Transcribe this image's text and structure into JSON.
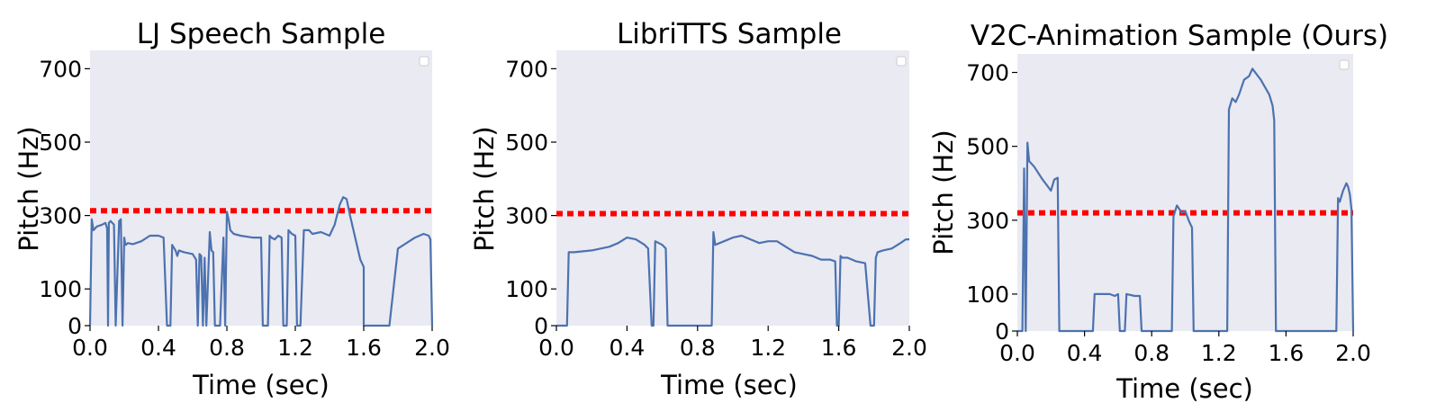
{
  "chart_data": [
    {
      "type": "line",
      "title": "LJ Speech Sample",
      "xlabel": "Time (sec)",
      "ylabel": "Pitch (Hz)",
      "xlim": [
        0,
        2.0
      ],
      "ylim": [
        0,
        750
      ],
      "xticks": [
        0.0,
        0.4,
        0.8,
        1.2,
        1.6,
        2.0
      ],
      "xtick_labels": [
        "0.0",
        "0.4",
        "0.8",
        "1.2",
        "1.6",
        "2.0"
      ],
      "yticks": [
        0,
        100,
        300,
        500,
        700
      ],
      "ytick_labels": [
        "0",
        "100",
        "300",
        "500",
        "700"
      ],
      "grid": false,
      "legend": "top-right",
      "mean_pitch": 313,
      "series": [
        {
          "x": [
            0.0,
            0.01,
            0.02,
            0.04,
            0.07,
            0.09,
            0.1,
            0.105,
            0.11,
            0.12,
            0.13,
            0.14,
            0.15,
            0.17,
            0.18,
            0.19,
            0.2,
            0.205,
            0.21,
            0.22,
            0.25,
            0.3,
            0.35,
            0.4,
            0.43,
            0.45,
            0.47,
            0.48,
            0.5,
            0.51,
            0.52,
            0.55,
            0.6,
            0.62,
            0.63,
            0.64,
            0.65,
            0.66,
            0.67,
            0.68,
            0.7,
            0.71,
            0.72,
            0.73,
            0.74,
            0.75,
            0.76,
            0.78,
            0.79,
            0.8,
            0.81,
            0.82,
            0.84,
            0.88,
            0.95,
            1.0,
            1.01,
            1.02,
            1.03,
            1.04,
            1.05,
            1.06,
            1.08,
            1.1,
            1.12,
            1.13,
            1.14,
            1.15,
            1.16,
            1.18,
            1.2,
            1.21,
            1.22,
            1.23,
            1.25,
            1.28,
            1.3,
            1.35,
            1.4,
            1.43,
            1.46,
            1.48,
            1.5,
            1.52,
            1.55,
            1.58,
            1.6,
            1.6,
            1.65,
            1.7,
            1.75,
            1.8,
            1.85,
            1.9,
            1.95,
            1.98,
            1.99,
            2.0
          ],
          "y": [
            0,
            290,
            260,
            270,
            275,
            280,
            265,
            0,
            280,
            285,
            280,
            275,
            0,
            285,
            290,
            0,
            240,
            225,
            220,
            225,
            222,
            230,
            245,
            245,
            240,
            0,
            0,
            220,
            205,
            190,
            205,
            200,
            195,
            180,
            0,
            195,
            190,
            0,
            185,
            0,
            255,
            205,
            200,
            0,
            0,
            0,
            0,
            240,
            0,
            310,
            290,
            260,
            250,
            245,
            240,
            240,
            0,
            0,
            0,
            0,
            245,
            240,
            235,
            245,
            240,
            0,
            0,
            0,
            260,
            250,
            245,
            0,
            0,
            0,
            260,
            260,
            250,
            255,
            245,
            275,
            330,
            350,
            345,
            300,
            240,
            180,
            160,
            0,
            0,
            0,
            0,
            210,
            225,
            240,
            250,
            245,
            235,
            0
          ]
        }
      ]
    },
    {
      "type": "line",
      "title": "LibriTTS Sample",
      "xlabel": "Time (sec)",
      "ylabel": "Pitch (Hz)",
      "xlim": [
        0,
        2.0
      ],
      "ylim": [
        0,
        750
      ],
      "xticks": [
        0.0,
        0.4,
        0.8,
        1.2,
        1.6,
        2.0
      ],
      "xtick_labels": [
        "0.0",
        "0.4",
        "0.8",
        "1.2",
        "1.6",
        "2.0"
      ],
      "yticks": [
        0,
        100,
        300,
        500,
        700
      ],
      "ytick_labels": [
        "0",
        "100",
        "300",
        "500",
        "700"
      ],
      "grid": false,
      "legend": "top-right",
      "mean_pitch": 305,
      "series": [
        {
          "x": [
            0.0,
            0.06,
            0.07,
            0.1,
            0.2,
            0.3,
            0.35,
            0.4,
            0.45,
            0.5,
            0.52,
            0.54,
            0.55,
            0.56,
            0.58,
            0.6,
            0.62,
            0.63,
            0.64,
            0.7,
            0.8,
            0.88,
            0.89,
            0.9,
            0.95,
            1.0,
            1.05,
            1.1,
            1.15,
            1.2,
            1.25,
            1.3,
            1.35,
            1.4,
            1.45,
            1.5,
            1.55,
            1.58,
            1.59,
            1.6,
            1.61,
            1.62,
            1.65,
            1.7,
            1.75,
            1.78,
            1.79,
            1.8,
            1.81,
            1.82,
            1.85,
            1.9,
            1.95,
            1.98,
            2.0
          ],
          "y": [
            0,
            0,
            200,
            200,
            205,
            215,
            225,
            240,
            235,
            220,
            210,
            0,
            0,
            230,
            225,
            220,
            210,
            0,
            0,
            0,
            0,
            0,
            255,
            220,
            230,
            240,
            245,
            235,
            225,
            230,
            230,
            215,
            200,
            195,
            190,
            180,
            180,
            175,
            0,
            0,
            190,
            185,
            185,
            175,
            170,
            0,
            0,
            0,
            185,
            200,
            205,
            210,
            225,
            235,
            235
          ]
        }
      ]
    },
    {
      "type": "line",
      "title": "V2C-Animation Sample (Ours)",
      "xlabel": "Time (sec)",
      "ylabel": "Pitch (Hz)",
      "xlim": [
        0,
        2.0
      ],
      "ylim": [
        0,
        750
      ],
      "xticks": [
        0.0,
        0.4,
        0.8,
        1.2,
        1.6,
        2.0
      ],
      "xtick_labels": [
        "0.0",
        "0.4",
        "0.8",
        "1.2",
        "1.6",
        "2.0"
      ],
      "yticks": [
        0,
        100,
        300,
        500,
        700
      ],
      "ytick_labels": [
        "0",
        "100",
        "300",
        "500",
        "700"
      ],
      "grid": false,
      "legend": "top-right",
      "mean_pitch": 320,
      "series": [
        {
          "x": [
            0.0,
            0.03,
            0.04,
            0.05,
            0.06,
            0.07,
            0.1,
            0.15,
            0.2,
            0.22,
            0.24,
            0.25,
            0.3,
            0.4,
            0.45,
            0.46,
            0.5,
            0.55,
            0.58,
            0.6,
            0.61,
            0.64,
            0.65,
            0.7,
            0.73,
            0.74,
            0.8,
            0.9,
            0.92,
            0.93,
            0.95,
            0.98,
            1.0,
            1.02,
            1.04,
            1.05,
            1.1,
            1.2,
            1.25,
            1.26,
            1.28,
            1.3,
            1.32,
            1.35,
            1.38,
            1.4,
            1.45,
            1.5,
            1.52,
            1.53,
            1.54,
            1.6,
            1.8,
            1.9,
            1.91,
            1.92,
            1.94,
            1.96,
            1.97,
            1.98,
            1.99,
            2.0
          ],
          "y": [
            0,
            0,
            440,
            0,
            510,
            460,
            445,
            410,
            380,
            410,
            415,
            0,
            0,
            0,
            0,
            100,
            100,
            100,
            95,
            100,
            0,
            0,
            100,
            95,
            95,
            0,
            0,
            0,
            0,
            310,
            340,
            320,
            325,
            300,
            280,
            0,
            0,
            0,
            0,
            600,
            630,
            620,
            640,
            680,
            690,
            710,
            680,
            640,
            610,
            570,
            0,
            0,
            0,
            0,
            360,
            350,
            380,
            400,
            390,
            370,
            330,
            0
          ]
        }
      ]
    }
  ]
}
